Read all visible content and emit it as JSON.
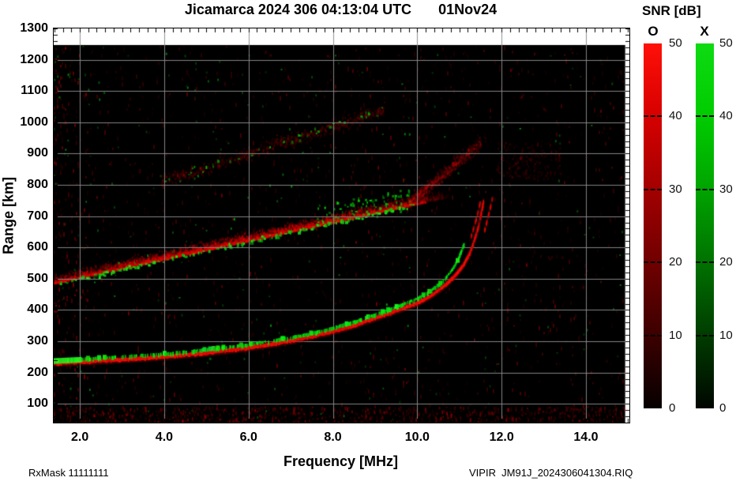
{
  "header": {
    "title": "Jicamarca 2024 306 04:13:04 UTC",
    "date": "01Nov24"
  },
  "footer": {
    "rx_mask": "RxMask 11111111",
    "file": "VIPIR  JM91J_2024306041304.RIQ"
  },
  "colorbar": {
    "title": "SNR [dB]",
    "o_label": "O",
    "x_label": "X",
    "tick_values": [
      50,
      40,
      30,
      20,
      10,
      0
    ],
    "dash_values": [
      40,
      30,
      20,
      10
    ],
    "scale_db": [
      0,
      50
    ],
    "o_stops": [
      "#060000",
      "#3c0000",
      "#700000",
      "#a30000",
      "#d60000",
      "#ff1008"
    ],
    "x_stops": [
      "#000600",
      "#003c00",
      "#007200",
      "#00a400",
      "#00cc00",
      "#0edb12"
    ]
  },
  "chart_data": {
    "type": "heatmap",
    "title": "Jicamarca 2024 306 04:13:04 UTC 01Nov24",
    "xlabel": "Frequency [MHz]",
    "ylabel": "Range [km]",
    "xlim": [
      1.38,
      15.03
    ],
    "ylim": [
      40,
      1300
    ],
    "x_ticks": [
      2,
      4,
      6,
      8,
      10,
      12,
      14
    ],
    "x_tick_labels": [
      "2.0",
      "4.0",
      "6.0",
      "8.0",
      "10.0",
      "12.0",
      "14.0"
    ],
    "y_ticks": [
      100,
      200,
      300,
      400,
      500,
      600,
      700,
      800,
      900,
      1000,
      1100,
      1200,
      1300
    ],
    "y_tick_labels": [
      "100",
      "200",
      "300",
      "400",
      "500",
      "600",
      "700",
      "800",
      "900",
      "1000",
      "1100",
      "1200",
      "1300"
    ],
    "grid": true,
    "grid_color": "#8c8c8c",
    "data_extent": {
      "f_min": 1.38,
      "f_max": 14.93,
      "range_min": 40,
      "range_max": 1247
    },
    "o_color": "#ff0000",
    "x_color": "#00dd00",
    "o_trace": [
      [
        1.38,
        230
      ],
      [
        2,
        234
      ],
      [
        2.5,
        238
      ],
      [
        3,
        242
      ],
      [
        3.5,
        246
      ],
      [
        4,
        251
      ],
      [
        4.5,
        257
      ],
      [
        5,
        263
      ],
      [
        5.5,
        271
      ],
      [
        6,
        280
      ],
      [
        6.5,
        290
      ],
      [
        7,
        302
      ],
      [
        7.5,
        316
      ],
      [
        8,
        332
      ],
      [
        8.5,
        351
      ],
      [
        9,
        374
      ],
      [
        9.5,
        398
      ],
      [
        10,
        422
      ],
      [
        10.3,
        444
      ],
      [
        10.6,
        472
      ],
      [
        10.9,
        510
      ],
      [
        11.1,
        545
      ],
      [
        11.25,
        582
      ],
      [
        11.35,
        620
      ],
      [
        11.45,
        665
      ],
      [
        11.52,
        710
      ],
      [
        11.58,
        752
      ]
    ],
    "x_trace": [
      [
        1.38,
        238
      ],
      [
        2,
        242
      ],
      [
        3,
        250
      ],
      [
        4,
        259
      ],
      [
        5,
        272
      ],
      [
        6,
        289
      ],
      [
        6.5,
        299
      ],
      [
        7,
        311
      ],
      [
        7.5,
        325
      ],
      [
        8,
        341
      ],
      [
        8.5,
        361
      ],
      [
        9,
        384
      ],
      [
        9.5,
        409
      ],
      [
        10,
        435
      ],
      [
        10.3,
        459
      ],
      [
        10.6,
        490
      ],
      [
        10.8,
        522
      ],
      [
        10.95,
        556
      ],
      [
        11.05,
        588
      ],
      [
        11.12,
        615
      ]
    ],
    "dashed_arcs": [
      [
        [
          11.28,
          635
        ],
        [
          11.42,
          700
        ],
        [
          11.5,
          748
        ]
      ],
      [
        [
          11.6,
          655
        ],
        [
          11.72,
          720
        ],
        [
          11.79,
          762
        ]
      ]
    ],
    "spread_band": {
      "f_start": 1.38,
      "f_end": 10.8,
      "range_start": 487,
      "slope_km_per_mhz": 29.5,
      "thickness_km": 90
    },
    "upper_band": {
      "f_start": 3.9,
      "f_end": 9.2,
      "range_start": 810,
      "slope_km_per_mhz": 44,
      "thickness_km": 75
    },
    "upturn": {
      "f_start": 9.75,
      "f_end": 11.5,
      "range_start": 742,
      "range_end": 937
    },
    "faint_cloud": {
      "f_start": 11.9,
      "f_end": 13.4,
      "range_start": 820,
      "range_end": 940
    },
    "noise": {
      "seed": 1234,
      "streaks": [
        [
          1.5,
          8,
          0.5
        ],
        [
          1.9,
          4,
          0.32
        ],
        [
          2.15,
          2,
          0.25
        ],
        [
          2.6,
          2,
          0.18
        ],
        [
          3.35,
          2,
          0.15
        ],
        [
          4.1,
          1,
          0.12
        ],
        [
          5.2,
          2,
          0.16
        ],
        [
          6.3,
          1,
          0.1
        ],
        [
          7.1,
          1,
          0.1
        ],
        [
          8.05,
          1,
          0.12
        ],
        [
          8.85,
          14,
          0.09
        ],
        [
          9.4,
          2,
          0.18
        ],
        [
          9.7,
          2,
          0.2
        ],
        [
          10.2,
          2,
          0.14
        ],
        [
          10.75,
          2,
          0.13
        ],
        [
          11.2,
          1,
          0.1
        ],
        [
          12.0,
          7,
          0.1
        ],
        [
          12.45,
          2,
          0.13
        ],
        [
          13.3,
          3,
          0.16
        ],
        [
          13.65,
          2,
          0.11
        ],
        [
          14.35,
          2,
          0.1
        ],
        [
          14.85,
          2,
          0.14
        ]
      ]
    }
  }
}
